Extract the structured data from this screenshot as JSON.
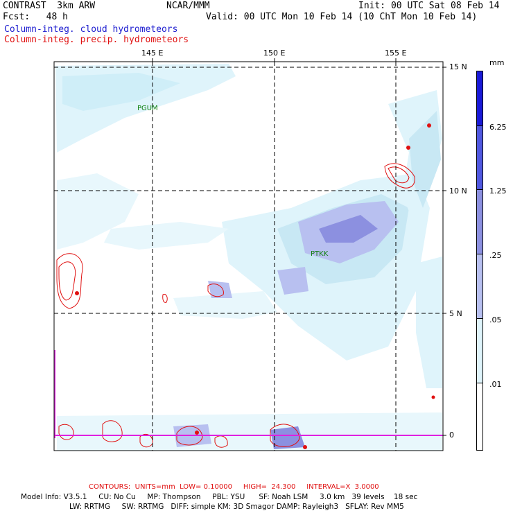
{
  "header": {
    "left1": "CONTRAST  3km ARW",
    "center1": "NCAR/MMM",
    "right1": "Init: 00 UTC Sat 08 Feb 14",
    "left2": "Fcst:   48 h",
    "right2": "Valid: 00 UTC Mon 10 Feb 14 (10 ChT Mon 10 Feb 14)",
    "field1": "Column-integ. cloud hydrometeors",
    "field2": "Column-integ. precip. hydrometeors"
  },
  "colors": {
    "field1": "#2020d0",
    "field2": "#e01010",
    "shade1": "#dff4fb",
    "shade2": "#c8e8f4",
    "shade3": "#b8c0f0",
    "shade4": "#8c90e0",
    "shade5": "#5058e0",
    "shade6": "#1a1ad8",
    "magenta": "#e020e0"
  },
  "map": {
    "lon_labels": [
      "145 E",
      "150 E",
      "155 E"
    ],
    "lat_labels": [
      "15 N",
      "10 N",
      "5 N",
      "0"
    ],
    "stations": [
      "PGUM",
      "PTKK"
    ]
  },
  "colorbar": {
    "unit": "mm",
    "labels": [
      "6.25",
      "1.25",
      ".25",
      ".05",
      ".01"
    ]
  },
  "footer": {
    "contours": "CONTOURS:  UNITS=mm  LOW= 0.10000     HIGH=  24.300     INTERVAL=X  3.0000",
    "line1": "Model Info: V3.5.1     CU: No Cu     MP: Thompson     PBL: YSU      SF: Noah LSM     3.0 km   39 levels    18 sec",
    "line2": "LW: RRTMG     SW: RRTMG   DIFF: simple KM: 3D Smagor DAMP: Rayleigh3   SFLAY: Rev MM5"
  }
}
